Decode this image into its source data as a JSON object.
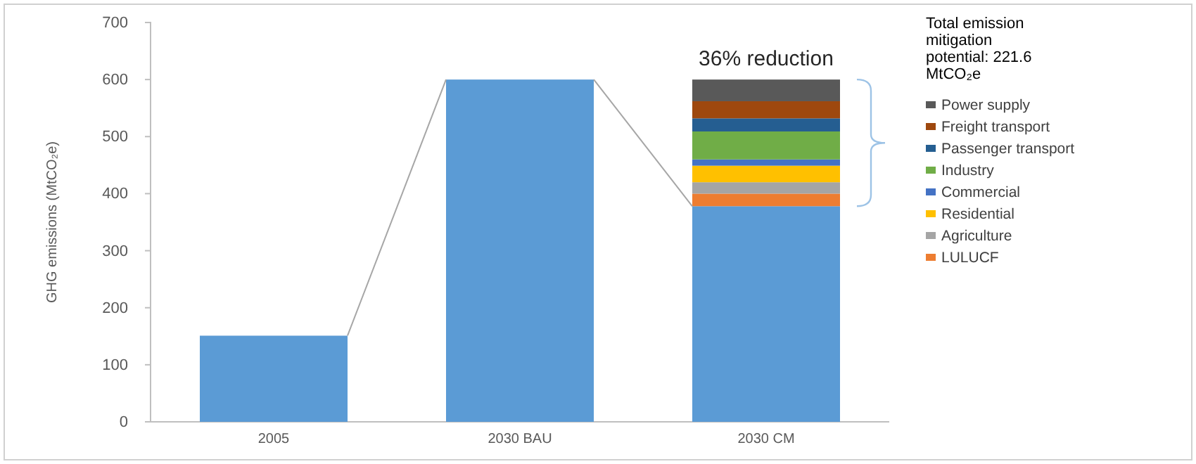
{
  "chart_data": {
    "type": "bar",
    "stacked": true,
    "ylabel": "GHG emissions (MtCO₂e)",
    "legend_title": "Total emission mitigation potential: 221.6 MtCO₂e",
    "annotations": [
      {
        "text": "36% reduction",
        "x": "2030 CM",
        "y": 600
      }
    ],
    "categories": [
      "2005",
      "2030 BAU",
      "2030 CM"
    ],
    "ylim": [
      0,
      700
    ],
    "yticks": [
      0,
      100,
      200,
      300,
      400,
      500,
      600,
      700
    ],
    "grid": false,
    "legend": "right",
    "series": [
      {
        "color": "#5b9bd5",
        "values": [
          151,
          600,
          378
        ]
      },
      {
        "name": "LULUCF",
        "color": "#ed7d31",
        "values": [
          null,
          null,
          22
        ]
      },
      {
        "name": "Agriculture",
        "color": "#a5a5a5",
        "values": [
          null,
          null,
          20
        ]
      },
      {
        "name": "Residential",
        "color": "#ffc000",
        "values": [
          null,
          null,
          29
        ]
      },
      {
        "name": "Commercial",
        "color": "#4472c4",
        "values": [
          null,
          null,
          11
        ]
      },
      {
        "name": "Industry",
        "color": "#70ad47",
        "values": [
          null,
          null,
          49
        ]
      },
      {
        "name": "Passenger transport",
        "color": "#255e91",
        "values": [
          null,
          null,
          23
        ]
      },
      {
        "name": "Freight transport",
        "color": "#9e480e",
        "values": [
          null,
          null,
          30
        ]
      },
      {
        "name": "Power supply",
        "color": "#595959",
        "values": [
          null,
          null,
          38
        ]
      }
    ]
  }
}
